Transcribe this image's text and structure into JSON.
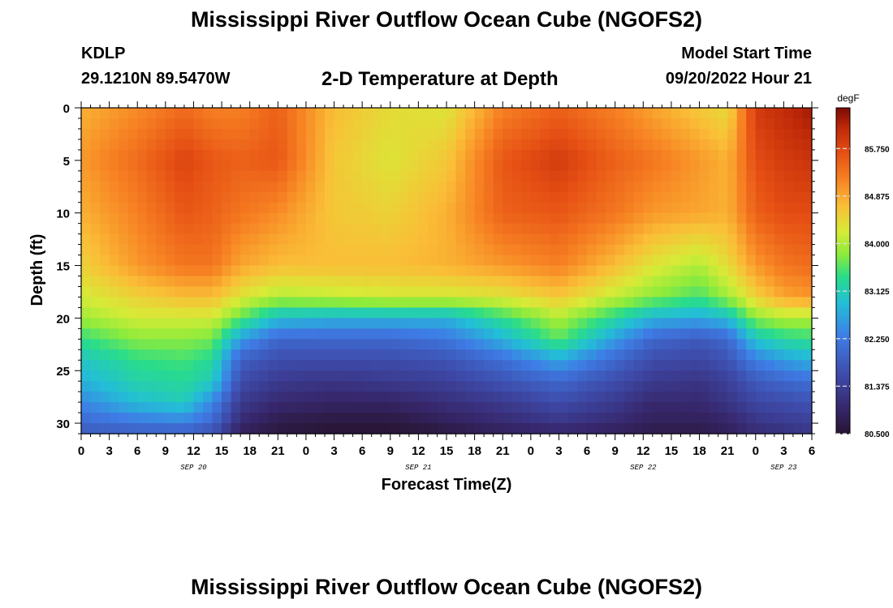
{
  "header": {
    "title": "Mississippi River Outflow Ocean Cube (NGOFS2)",
    "station": "KDLP",
    "coords": "29.1210N  89.5470W",
    "subtitle": "2-D Temperature at Depth",
    "model_start_label": "Model Start Time",
    "model_start_value": "09/20/2022 Hour 21"
  },
  "footer": {
    "title": "Mississippi River Outflow Ocean Cube (NGOFS2)"
  },
  "chart_data": {
    "type": "heatmap",
    "title": "2-D Temperature at Depth",
    "xlabel": "Forecast Time(Z)",
    "ylabel": "Depth (ft)",
    "x_range_hours": [
      0,
      78
    ],
    "x_ticks": [
      {
        "hour": 0,
        "label": "0"
      },
      {
        "hour": 3,
        "label": "3"
      },
      {
        "hour": 6,
        "label": "6"
      },
      {
        "hour": 9,
        "label": "9"
      },
      {
        "hour": 12,
        "label": "12"
      },
      {
        "hour": 15,
        "label": "15"
      },
      {
        "hour": 18,
        "label": "18"
      },
      {
        "hour": 21,
        "label": "21"
      },
      {
        "hour": 24,
        "label": "0"
      },
      {
        "hour": 27,
        "label": "3"
      },
      {
        "hour": 30,
        "label": "6"
      },
      {
        "hour": 33,
        "label": "9"
      },
      {
        "hour": 36,
        "label": "12"
      },
      {
        "hour": 39,
        "label": "15"
      },
      {
        "hour": 42,
        "label": "18"
      },
      {
        "hour": 45,
        "label": "21"
      },
      {
        "hour": 48,
        "label": "0"
      },
      {
        "hour": 51,
        "label": "3"
      },
      {
        "hour": 54,
        "label": "6"
      },
      {
        "hour": 57,
        "label": "9"
      },
      {
        "hour": 60,
        "label": "12"
      },
      {
        "hour": 63,
        "label": "15"
      },
      {
        "hour": 66,
        "label": "18"
      },
      {
        "hour": 69,
        "label": "21"
      },
      {
        "hour": 72,
        "label": "0"
      },
      {
        "hour": 75,
        "label": "3"
      },
      {
        "hour": 78,
        "label": "6"
      }
    ],
    "date_labels": [
      {
        "hour": 12,
        "label": "SEP 20"
      },
      {
        "hour": 36,
        "label": "SEP 21"
      },
      {
        "hour": 60,
        "label": "SEP 22"
      },
      {
        "hour": 75,
        "label": "SEP 23"
      }
    ],
    "y_range_ft": [
      0,
      31
    ],
    "y_ticks": [
      0,
      5,
      10,
      15,
      20,
      25,
      30
    ],
    "colorbar": {
      "unit": "degF",
      "range": [
        80.5,
        86.5
      ],
      "tick_values": [
        80.5,
        81.375,
        82.25,
        83.125,
        84.0,
        84.875,
        85.75
      ],
      "tick_labels": [
        "80.500",
        "81.375",
        "82.250",
        "83.125",
        "84.000",
        "84.875",
        "85.750"
      ]
    },
    "columns_hours": [
      0,
      6,
      11,
      14,
      17,
      21,
      27,
      33,
      39,
      45,
      51,
      57,
      61,
      66,
      69,
      72,
      75,
      78
    ],
    "rows_depth_ft": [
      0,
      5,
      10,
      15,
      18,
      20,
      22,
      24,
      26,
      28,
      30,
      31
    ],
    "values": [
      [
        84.8,
        85.1,
        85.4,
        85.2,
        85.2,
        85.5,
        84.7,
        84.4,
        84.3,
        85.2,
        85.5,
        85.2,
        84.9,
        84.6,
        84.4,
        85.9,
        86.1,
        86.3
      ],
      [
        85.0,
        85.4,
        85.8,
        85.6,
        85.5,
        85.6,
        84.6,
        84.3,
        84.6,
        85.6,
        85.9,
        85.5,
        85.3,
        85.0,
        84.8,
        85.7,
        85.9,
        86.0
      ],
      [
        84.8,
        85.2,
        85.6,
        85.5,
        85.3,
        85.1,
        84.6,
        84.5,
        84.8,
        85.5,
        85.6,
        85.3,
        85.0,
        84.9,
        84.8,
        85.5,
        85.7,
        85.7
      ],
      [
        84.5,
        85.0,
        85.3,
        85.3,
        84.9,
        84.7,
        84.7,
        84.7,
        84.8,
        85.0,
        85.2,
        84.7,
        84.3,
        84.0,
        84.4,
        85.0,
        85.3,
        85.4
      ],
      [
        84.2,
        84.5,
        84.7,
        84.7,
        84.3,
        84.0,
        84.1,
        84.2,
        84.2,
        84.3,
        84.6,
        84.1,
        83.8,
        83.5,
        83.9,
        84.5,
        84.9,
        85.0
      ],
      [
        83.9,
        84.2,
        84.2,
        84.2,
        83.6,
        82.9,
        82.8,
        82.8,
        82.8,
        83.4,
        84.0,
        83.3,
        82.8,
        82.7,
        82.9,
        83.8,
        84.0,
        84.0
      ],
      [
        83.4,
        83.8,
        83.8,
        83.7,
        82.6,
        82.0,
        82.0,
        82.0,
        82.2,
        82.8,
        83.6,
        82.6,
        82.0,
        81.8,
        82.0,
        83.0,
        83.3,
        83.4
      ],
      [
        83.0,
        83.4,
        83.5,
        83.3,
        81.9,
        81.6,
        81.6,
        81.6,
        81.7,
        82.1,
        82.7,
        82.0,
        81.6,
        81.5,
        81.7,
        82.3,
        82.6,
        82.8
      ],
      [
        82.8,
        83.2,
        83.3,
        83.1,
        81.6,
        81.3,
        81.2,
        81.3,
        81.4,
        81.7,
        82.0,
        81.6,
        81.3,
        81.2,
        81.4,
        81.8,
        82.0,
        82.1
      ],
      [
        82.4,
        82.9,
        83.1,
        82.4,
        81.3,
        81.0,
        80.9,
        80.9,
        81.1,
        81.3,
        81.6,
        81.3,
        81.0,
        81.0,
        81.2,
        81.5,
        81.6,
        81.7
      ],
      [
        82.0,
        82.2,
        82.3,
        82.0,
        81.0,
        80.7,
        80.6,
        80.6,
        80.8,
        81.0,
        81.2,
        81.0,
        80.8,
        80.8,
        80.9,
        81.2,
        81.3,
        81.4
      ],
      [
        81.8,
        81.8,
        81.8,
        81.6,
        80.8,
        80.6,
        80.5,
        80.5,
        80.6,
        80.8,
        80.9,
        80.8,
        80.7,
        80.7,
        80.8,
        81.0,
        81.1,
        81.2
      ]
    ]
  }
}
